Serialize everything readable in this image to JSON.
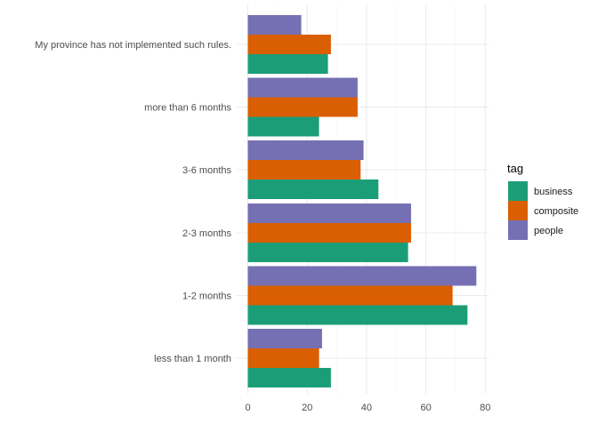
{
  "chart_data": {
    "type": "bar",
    "orientation": "horizontal",
    "title": "",
    "xlabel": "",
    "ylabel": "",
    "xlim": [
      0,
      80
    ],
    "x_ticks": [
      0,
      20,
      40,
      60,
      80
    ],
    "grid": true,
    "categories": [
      "My province has not implemented such rules.",
      "more than 6 months",
      "3-6 months",
      "2-3 months",
      "1-2 months",
      "less than 1 month"
    ],
    "series": [
      {
        "name": "business",
        "color": "#1b9e77",
        "values": [
          27,
          24,
          44,
          54,
          74,
          28
        ]
      },
      {
        "name": "composite",
        "color": "#d95f02",
        "values": [
          28,
          37,
          38,
          55,
          69,
          24
        ]
      },
      {
        "name": "people",
        "color": "#7570b3",
        "values": [
          18,
          37,
          39,
          55,
          77,
          25
        ]
      }
    ],
    "legend": {
      "title": "tag",
      "position": "right"
    }
  }
}
